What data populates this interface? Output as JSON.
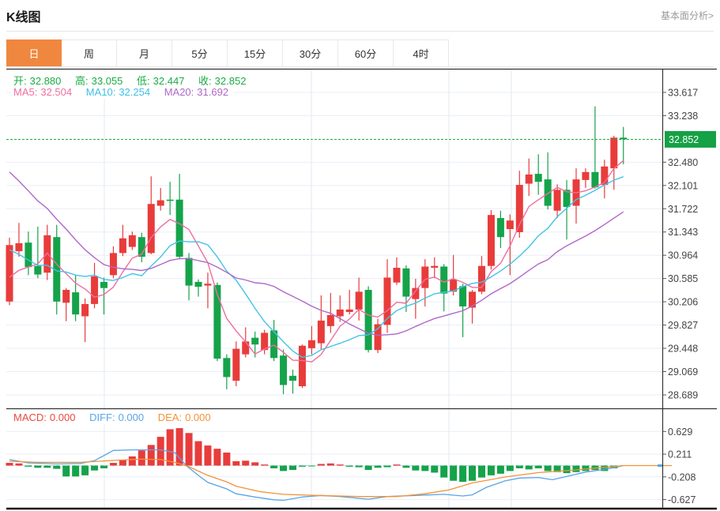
{
  "header": {
    "title": "K线图",
    "analysis_link": "基本面分析>"
  },
  "tabs": [
    {
      "label": "日",
      "active": true
    },
    {
      "label": "周",
      "active": false
    },
    {
      "label": "月",
      "active": false
    },
    {
      "label": "5分",
      "active": false
    },
    {
      "label": "15分",
      "active": false
    },
    {
      "label": "30分",
      "active": false
    },
    {
      "label": "60分",
      "active": false
    },
    {
      "label": "4时",
      "active": false
    }
  ],
  "ohlc": {
    "open_label": "开:",
    "open": "32.880",
    "high_label": "高:",
    "high": "33.055",
    "low_label": "低:",
    "low": "32.447",
    "close_label": "收:",
    "close": "32.852"
  },
  "ma_legend": {
    "ma5_label": "MA5:",
    "ma5": "32.504",
    "ma10_label": "MA10:",
    "ma10": "32.254",
    "ma20_label": "MA20:",
    "ma20": "31.692"
  },
  "macd_legend": {
    "macd_label": "MACD:",
    "macd": "0.000",
    "diff_label": "DIFF:",
    "diff": "0.000",
    "dea_label": "DEA:",
    "dea": "0.000"
  },
  "price_marker": {
    "label": "32.852",
    "value": 32.852
  },
  "colors": {
    "up": "#e83c3b",
    "down": "#15a34a",
    "ma5": "#ef6e9f",
    "ma10": "#43c3e6",
    "ma20": "#b067c9",
    "diff": "#58a5e8",
    "dea": "#f39238",
    "grid": "#e9eef7",
    "vgrid": "#e2e9f2",
    "axis": "#333333",
    "tick_label": "#444444",
    "price_line": "#1bac45",
    "price_box": "#15a145",
    "zero_dash": "#bcd9ee"
  },
  "chart_data": {
    "type": "candlestick_with_macd",
    "main": {
      "y_ticks": [
        "33.617",
        "33.238",
        "32.480",
        "32.101",
        "31.722",
        "31.343",
        "30.964",
        "30.585",
        "30.206",
        "29.827",
        "29.448",
        "29.069",
        "28.689"
      ],
      "y_range": [
        28.689,
        33.617
      ],
      "price_line": 32.852,
      "candles": [
        [
          30.21,
          31.25,
          30.15,
          31.13
        ],
        [
          31.03,
          31.49,
          30.94,
          31.16
        ],
        [
          31.17,
          31.35,
          30.64,
          30.77
        ],
        [
          30.79,
          31.43,
          30.59,
          30.65
        ],
        [
          30.68,
          31.46,
          30.56,
          31.29
        ],
        [
          31.26,
          31.46,
          30.0,
          30.21
        ],
        [
          30.19,
          30.43,
          29.89,
          30.4
        ],
        [
          30.36,
          30.64,
          29.89,
          30.0
        ],
        [
          29.97,
          30.26,
          29.55,
          30.17
        ],
        [
          30.17,
          30.84,
          30.1,
          30.62
        ],
        [
          30.53,
          30.6,
          30.0,
          30.43
        ],
        [
          30.64,
          31.11,
          30.59,
          31.0
        ],
        [
          31.0,
          31.46,
          30.95,
          31.24
        ],
        [
          31.1,
          31.35,
          31.05,
          31.29
        ],
        [
          31.26,
          31.33,
          30.85,
          30.94
        ],
        [
          31.0,
          32.25,
          30.98,
          31.8
        ],
        [
          31.77,
          32.06,
          31.69,
          31.86
        ],
        [
          31.87,
          32.16,
          31.62,
          31.85
        ],
        [
          31.87,
          32.29,
          30.9,
          30.94
        ],
        [
          30.92,
          31.0,
          30.23,
          30.47
        ],
        [
          30.53,
          30.57,
          30.29,
          30.45
        ],
        [
          30.47,
          30.68,
          30.1,
          30.5
        ],
        [
          30.48,
          30.52,
          29.24,
          29.28
        ],
        [
          29.29,
          29.35,
          28.78,
          28.98
        ],
        [
          28.92,
          29.56,
          28.83,
          29.44
        ],
        [
          29.35,
          29.79,
          29.3,
          29.56
        ],
        [
          29.62,
          29.72,
          29.3,
          29.51
        ],
        [
          29.42,
          29.75,
          29.35,
          29.7
        ],
        [
          29.74,
          29.91,
          29.24,
          29.29
        ],
        [
          29.33,
          29.43,
          28.7,
          28.85
        ],
        [
          29.0,
          29.1,
          28.71,
          28.92
        ],
        [
          28.83,
          29.51,
          28.8,
          29.49
        ],
        [
          29.45,
          29.81,
          29.35,
          29.58
        ],
        [
          29.53,
          30.31,
          29.43,
          29.9
        ],
        [
          29.81,
          30.35,
          29.7,
          29.99
        ],
        [
          29.97,
          30.31,
          29.88,
          30.08
        ],
        [
          30.04,
          30.4,
          30.0,
          30.08
        ],
        [
          30.08,
          30.6,
          29.9,
          30.37
        ],
        [
          30.4,
          30.46,
          29.38,
          29.42
        ],
        [
          29.42,
          29.93,
          29.37,
          29.84
        ],
        [
          29.83,
          30.9,
          29.7,
          30.6
        ],
        [
          30.52,
          30.93,
          30.48,
          30.76
        ],
        [
          30.75,
          30.8,
          30.04,
          30.29
        ],
        [
          30.25,
          30.58,
          29.93,
          30.43
        ],
        [
          30.43,
          30.9,
          30.13,
          30.78
        ],
        [
          30.76,
          30.93,
          30.59,
          30.79
        ],
        [
          30.78,
          30.82,
          30.05,
          30.34
        ],
        [
          30.37,
          30.97,
          30.31,
          30.57
        ],
        [
          30.46,
          30.5,
          29.63,
          30.13
        ],
        [
          30.11,
          30.4,
          29.85,
          30.37
        ],
        [
          30.37,
          30.95,
          30.33,
          30.79
        ],
        [
          30.79,
          31.7,
          30.73,
          31.62
        ],
        [
          31.57,
          31.69,
          31.08,
          31.26
        ],
        [
          31.39,
          31.63,
          30.64,
          31.53
        ],
        [
          31.34,
          32.34,
          31.25,
          32.11
        ],
        [
          32.13,
          32.54,
          31.93,
          32.28
        ],
        [
          32.29,
          32.61,
          31.95,
          32.16
        ],
        [
          32.2,
          32.64,
          31.71,
          31.77
        ],
        [
          31.69,
          32.12,
          31.57,
          32.03
        ],
        [
          32.03,
          32.19,
          31.22,
          31.75
        ],
        [
          31.77,
          32.38,
          31.48,
          32.2
        ],
        [
          32.19,
          32.38,
          32.06,
          32.32
        ],
        [
          32.32,
          33.39,
          32.05,
          32.07
        ],
        [
          32.11,
          32.52,
          31.89,
          32.41
        ],
        [
          32.38,
          32.91,
          32.03,
          32.88
        ],
        [
          32.88,
          33.055,
          32.447,
          32.852
        ]
      ],
      "ma_seed_closes": [
        34.1,
        34.0,
        33.9,
        33.8,
        33.7,
        33.6,
        33.5,
        33.4,
        33.2,
        32.7,
        31.9,
        31.7,
        31.5,
        31.3,
        31.1,
        30.6,
        30.5,
        30.4,
        30.4
      ],
      "ma_periods": [
        5,
        10,
        20
      ]
    },
    "macd": {
      "y_ticks": [
        "0.629",
        "0.211",
        "-0.208",
        "-0.627"
      ],
      "hist": [
        0.05,
        0.04,
        -0.02,
        -0.04,
        -0.04,
        -0.06,
        -0.2,
        -0.2,
        -0.18,
        -0.09,
        -0.05,
        0.05,
        0.1,
        0.17,
        0.28,
        0.38,
        0.53,
        0.67,
        0.69,
        0.6,
        0.45,
        0.37,
        0.31,
        0.24,
        0.08,
        0.09,
        0.06,
        0.02,
        -0.05,
        -0.1,
        -0.08,
        -0.02,
        -0.01,
        0.03,
        0.04,
        0.02,
        -0.02,
        -0.03,
        -0.08,
        -0.04,
        -0.03,
        0.02,
        -0.04,
        -0.09,
        -0.1,
        -0.13,
        -0.22,
        -0.28,
        -0.3,
        -0.28,
        -0.22,
        -0.18,
        -0.15,
        -0.1,
        -0.05,
        -0.07,
        -0.05,
        -0.1,
        -0.12,
        -0.14,
        -0.12,
        -0.1,
        -0.08,
        -0.1,
        -0.05,
        0.0
      ],
      "diff_points": [
        [
          0,
          0.11
        ],
        [
          2,
          0.05
        ],
        [
          5,
          0.03
        ],
        [
          7.5,
          0.04
        ],
        [
          9,
          0.09
        ],
        [
          11,
          0.28
        ],
        [
          13,
          0.29
        ],
        [
          16,
          0.29
        ],
        [
          17.5,
          0.24
        ],
        [
          18.7,
          0.0
        ],
        [
          20,
          -0.18
        ],
        [
          21,
          -0.31
        ],
        [
          23,
          -0.43
        ],
        [
          24,
          -0.52
        ],
        [
          26,
          -0.58
        ],
        [
          28,
          -0.63
        ],
        [
          29,
          -0.64
        ],
        [
          31,
          -0.58
        ],
        [
          33,
          -0.55
        ],
        [
          35,
          -0.57
        ],
        [
          38,
          -0.62
        ],
        [
          40,
          -0.57
        ],
        [
          43,
          -0.55
        ],
        [
          46,
          -0.53
        ],
        [
          48,
          -0.56
        ],
        [
          49,
          -0.54
        ],
        [
          50.5,
          -0.4
        ],
        [
          52.5,
          -0.28
        ],
        [
          54,
          -0.23
        ],
        [
          56,
          -0.22
        ],
        [
          57.5,
          -0.26
        ],
        [
          59,
          -0.2
        ],
        [
          61,
          -0.12
        ],
        [
          63,
          -0.07
        ],
        [
          64.5,
          -0.02
        ],
        [
          65,
          0.0
        ]
      ],
      "dea_points": [
        [
          0,
          0.08
        ],
        [
          3,
          0.06
        ],
        [
          7.5,
          0.06
        ],
        [
          11.5,
          0.1
        ],
        [
          14,
          0.12
        ],
        [
          16,
          0.11
        ],
        [
          17.5,
          0.06
        ],
        [
          19,
          -0.02
        ],
        [
          21,
          -0.18
        ],
        [
          23,
          -0.3
        ],
        [
          24,
          -0.38
        ],
        [
          26.5,
          -0.48
        ],
        [
          29,
          -0.53
        ],
        [
          32.5,
          -0.55
        ],
        [
          37,
          -0.57
        ],
        [
          41,
          -0.57
        ],
        [
          44,
          -0.52
        ],
        [
          46.5,
          -0.45
        ],
        [
          49,
          -0.32
        ],
        [
          52.5,
          -0.21
        ],
        [
          56,
          -0.13
        ],
        [
          60,
          -0.08
        ],
        [
          62.5,
          -0.04
        ],
        [
          64.5,
          -0.01
        ],
        [
          65,
          0.0
        ]
      ]
    }
  }
}
